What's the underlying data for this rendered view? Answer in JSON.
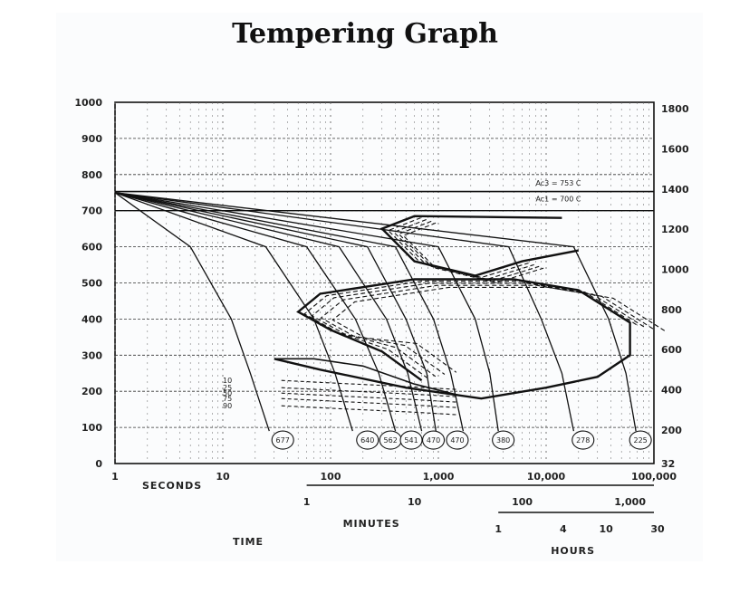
{
  "page": {
    "title": "Tempering Graph"
  },
  "chart_data": {
    "type": "line",
    "title": "Tempering Graph",
    "x_axis": {
      "scale": "log",
      "range": [
        1,
        100000
      ],
      "tick_labels": [
        "1",
        "10",
        "100",
        "1,000",
        "10,000",
        "100,000"
      ],
      "label": "SECONDS"
    },
    "secondary_x_axes": [
      {
        "label": "MINUTES",
        "ticks": [
          {
            "label": "1",
            "seconds": 60
          },
          {
            "label": "10",
            "seconds": 600
          },
          {
            "label": "100",
            "seconds": 6000
          },
          {
            "label": "1,000",
            "seconds": 60000
          }
        ]
      },
      {
        "label": "HOURS",
        "ticks": [
          {
            "label": "1",
            "seconds": 3600
          },
          {
            "label": "4",
            "seconds": 14400
          },
          {
            "label": "10",
            "seconds": 36000
          },
          {
            "label": "30",
            "seconds": 108000
          }
        ]
      }
    ],
    "time_label": "TIME",
    "y_axis_left": {
      "range": [
        0,
        1000
      ],
      "tick_labels": [
        "1000",
        "900",
        "800",
        "700",
        "600",
        "500",
        "400",
        "300",
        "200",
        "100",
        "0"
      ]
    },
    "y_axis_right": {
      "tick_labels": [
        "1800",
        "1600",
        "1400",
        "1200",
        "1000",
        "800",
        "600",
        "400",
        "200",
        "32"
      ]
    },
    "annotations": [
      "Ac3 = 753 C",
      "Ac1 = 700 C"
    ],
    "hardness_labels": [
      "677",
      "640",
      "562",
      "541",
      "470",
      "470",
      "380",
      "278",
      "225"
    ],
    "martensite_labels": [
      "10",
      "25",
      "50",
      "75",
      "90"
    ],
    "cooling_curves": [
      {
        "hardness": "677",
        "points": [
          [
            1,
            750
          ],
          [
            5,
            600
          ],
          [
            12,
            400
          ],
          [
            18,
            250
          ],
          [
            27,
            90
          ]
        ]
      },
      {
        "hardness": "640",
        "points": [
          [
            1,
            750
          ],
          [
            25,
            600
          ],
          [
            70,
            400
          ],
          [
            110,
            250
          ],
          [
            160,
            90
          ]
        ]
      },
      {
        "hardness": "562",
        "points": [
          [
            1,
            750
          ],
          [
            60,
            600
          ],
          [
            170,
            400
          ],
          [
            280,
            250
          ],
          [
            400,
            90
          ]
        ]
      },
      {
        "hardness": "541",
        "points": [
          [
            1,
            750
          ],
          [
            120,
            600
          ],
          [
            330,
            400
          ],
          [
            520,
            250
          ],
          [
            700,
            90
          ]
        ]
      },
      {
        "hardness": "470",
        "points": [
          [
            1,
            750
          ],
          [
            220,
            600
          ],
          [
            500,
            400
          ],
          [
            780,
            250
          ],
          [
            950,
            90
          ]
        ]
      },
      {
        "hardness": "470",
        "points": [
          [
            1,
            750
          ],
          [
            400,
            600
          ],
          [
            900,
            400
          ],
          [
            1300,
            250
          ],
          [
            1700,
            90
          ]
        ]
      },
      {
        "hardness": "380",
        "points": [
          [
            1,
            750
          ],
          [
            1000,
            600
          ],
          [
            2200,
            400
          ],
          [
            3000,
            250
          ],
          [
            3600,
            90
          ]
        ]
      },
      {
        "hardness": "278",
        "points": [
          [
            1,
            750
          ],
          [
            4500,
            600
          ],
          [
            9000,
            400
          ],
          [
            14000,
            250
          ],
          [
            18000,
            90
          ]
        ]
      },
      {
        "hardness": "225",
        "points": [
          [
            1,
            750
          ],
          [
            18000,
            600
          ],
          [
            38000,
            400
          ],
          [
            55000,
            250
          ],
          [
            68000,
            90
          ]
        ]
      }
    ],
    "transformation_start_upper": [
      [
        14000,
        680
      ],
      [
        600,
        685
      ],
      [
        300,
        650
      ],
      [
        600,
        560
      ],
      [
        2200,
        520
      ],
      [
        6000,
        560
      ],
      [
        20000,
        590
      ]
    ],
    "transformation_start_lower": [
      [
        30,
        290
      ],
      [
        80,
        260
      ],
      [
        500,
        210
      ],
      [
        2500,
        180
      ],
      [
        10000,
        210
      ],
      [
        30000,
        240
      ],
      [
        60000,
        300
      ],
      [
        60000,
        390
      ],
      [
        20000,
        480
      ],
      [
        5000,
        510
      ],
      [
        600,
        510
      ],
      [
        80,
        470
      ],
      [
        50,
        420
      ],
      [
        100,
        370
      ],
      [
        300,
        310
      ],
      [
        700,
        230
      ]
    ],
    "ms_line": [
      [
        30,
        290
      ],
      [
        70,
        290
      ],
      [
        200,
        270
      ],
      [
        600,
        220
      ],
      [
        1500,
        190
      ]
    ],
    "martensite_lines": [
      {
        "label": "10",
        "y": 230
      },
      {
        "label": "25",
        "y": 210
      },
      {
        "label": "50",
        "y": 195
      },
      {
        "label": "75",
        "y": 180
      },
      {
        "label": "90",
        "y": 160
      }
    ],
    "reference_lines": {
      "ac3": 753,
      "ac1": 700
    }
  }
}
